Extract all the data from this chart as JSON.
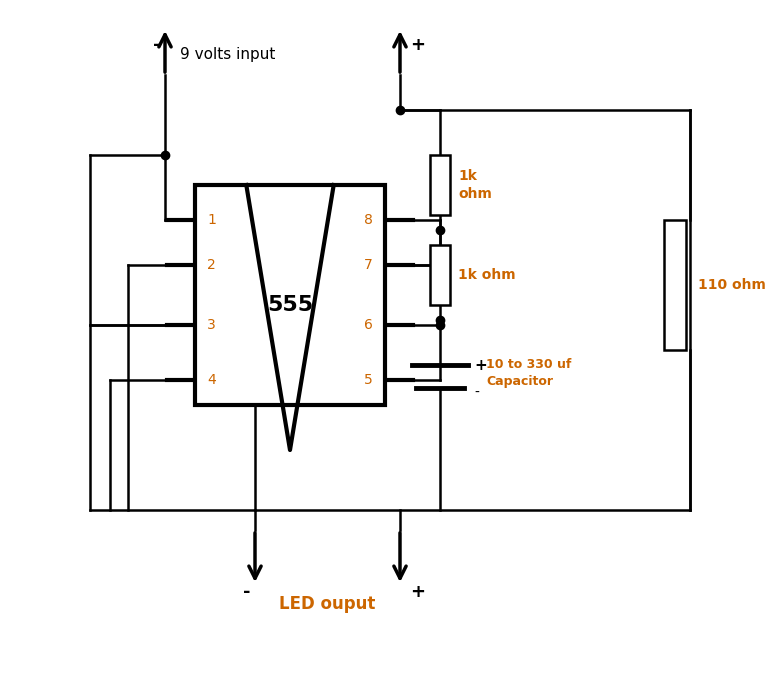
{
  "bg_color": "#ffffff",
  "wire_color": "#000000",
  "text_color": "#cc6600",
  "lw": 1.8,
  "tlw": 3.0,
  "chip_lw": 3.0,
  "fig_width": 7.47,
  "fig_height": 6.53,
  "labels": {
    "nine_volts": "9 volts input",
    "led_output": "LED ouput",
    "r1": "1k\nohm",
    "r2": "1k ohm",
    "r3": "110 ohm",
    "cap_label": "10 to 330 uf\nCapacitor",
    "minus_top": "-",
    "plus_top": "+",
    "minus_bot": "-",
    "plus_bot": "+",
    "plus_cap": "+",
    "minus_cap": "-",
    "chip_name": "555"
  }
}
